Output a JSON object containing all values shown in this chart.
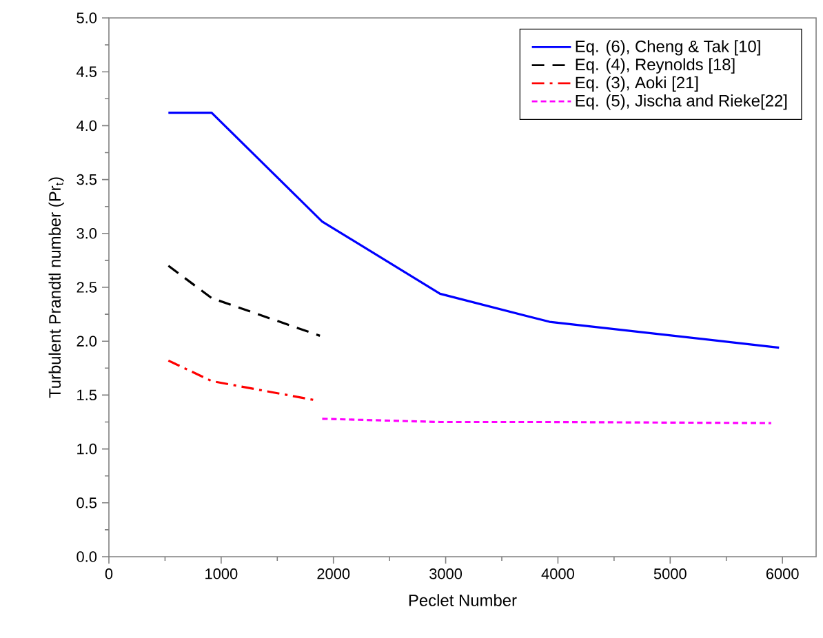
{
  "chart_data": {
    "type": "line",
    "xlabel": "Peclet Number",
    "ylabel": "Turbulent Prandtl number (Pr$_{t}$)",
    "xlim": [
      0,
      6300
    ],
    "ylim": [
      0,
      5
    ],
    "xticks": [
      0,
      1000,
      2000,
      3000,
      4000,
      5000,
      6000
    ],
    "yticks": [
      {
        "value": 0,
        "label": "0.0"
      },
      {
        "value": 0.5,
        "label": "0.5"
      },
      {
        "value": 1,
        "label": "1.0"
      },
      {
        "value": 1.5,
        "label": "1.5"
      },
      {
        "value": 2,
        "label": "2.0"
      },
      {
        "value": 2.5,
        "label": "2.5"
      },
      {
        "value": 3,
        "label": "3.0"
      },
      {
        "value": 3.5,
        "label": "3.5"
      },
      {
        "value": 4,
        "label": "4.0"
      },
      {
        "value": 4.5,
        "label": "4.5"
      },
      {
        "value": 5,
        "label": "5.0"
      }
    ],
    "grid": false,
    "legend": "top right",
    "marker": "none",
    "series": [
      {
        "name": "Eq. (6), Cheng & Tak [10]",
        "color": "#0000ff",
        "line_style": "solid",
        "x": [
          530,
          915,
          1900,
          2950,
          3925,
          5970
        ],
        "values": [
          4.12,
          4.12,
          3.11,
          2.44,
          2.18,
          1.94
        ]
      },
      {
        "name": "Eq. (4), Reynolds [18]",
        "color": "#000000",
        "line_style": "dashed",
        "x": [
          530,
          915,
          1880
        ],
        "values": [
          2.7,
          2.4,
          2.05
        ]
      },
      {
        "name": "Eq. (3), Aoki [21]",
        "color": "#ff0000",
        "line_style": "dashdot",
        "x": [
          530,
          915,
          1850
        ],
        "values": [
          1.82,
          1.63,
          1.45
        ]
      },
      {
        "name": "Eq. (5), Jischa and Rieke[22]",
        "color": "#ff00ff",
        "line_style": "dotted",
        "x": [
          1900,
          2950,
          3925,
          5900
        ],
        "values": [
          1.28,
          1.25,
          1.25,
          1.24
        ]
      }
    ]
  }
}
